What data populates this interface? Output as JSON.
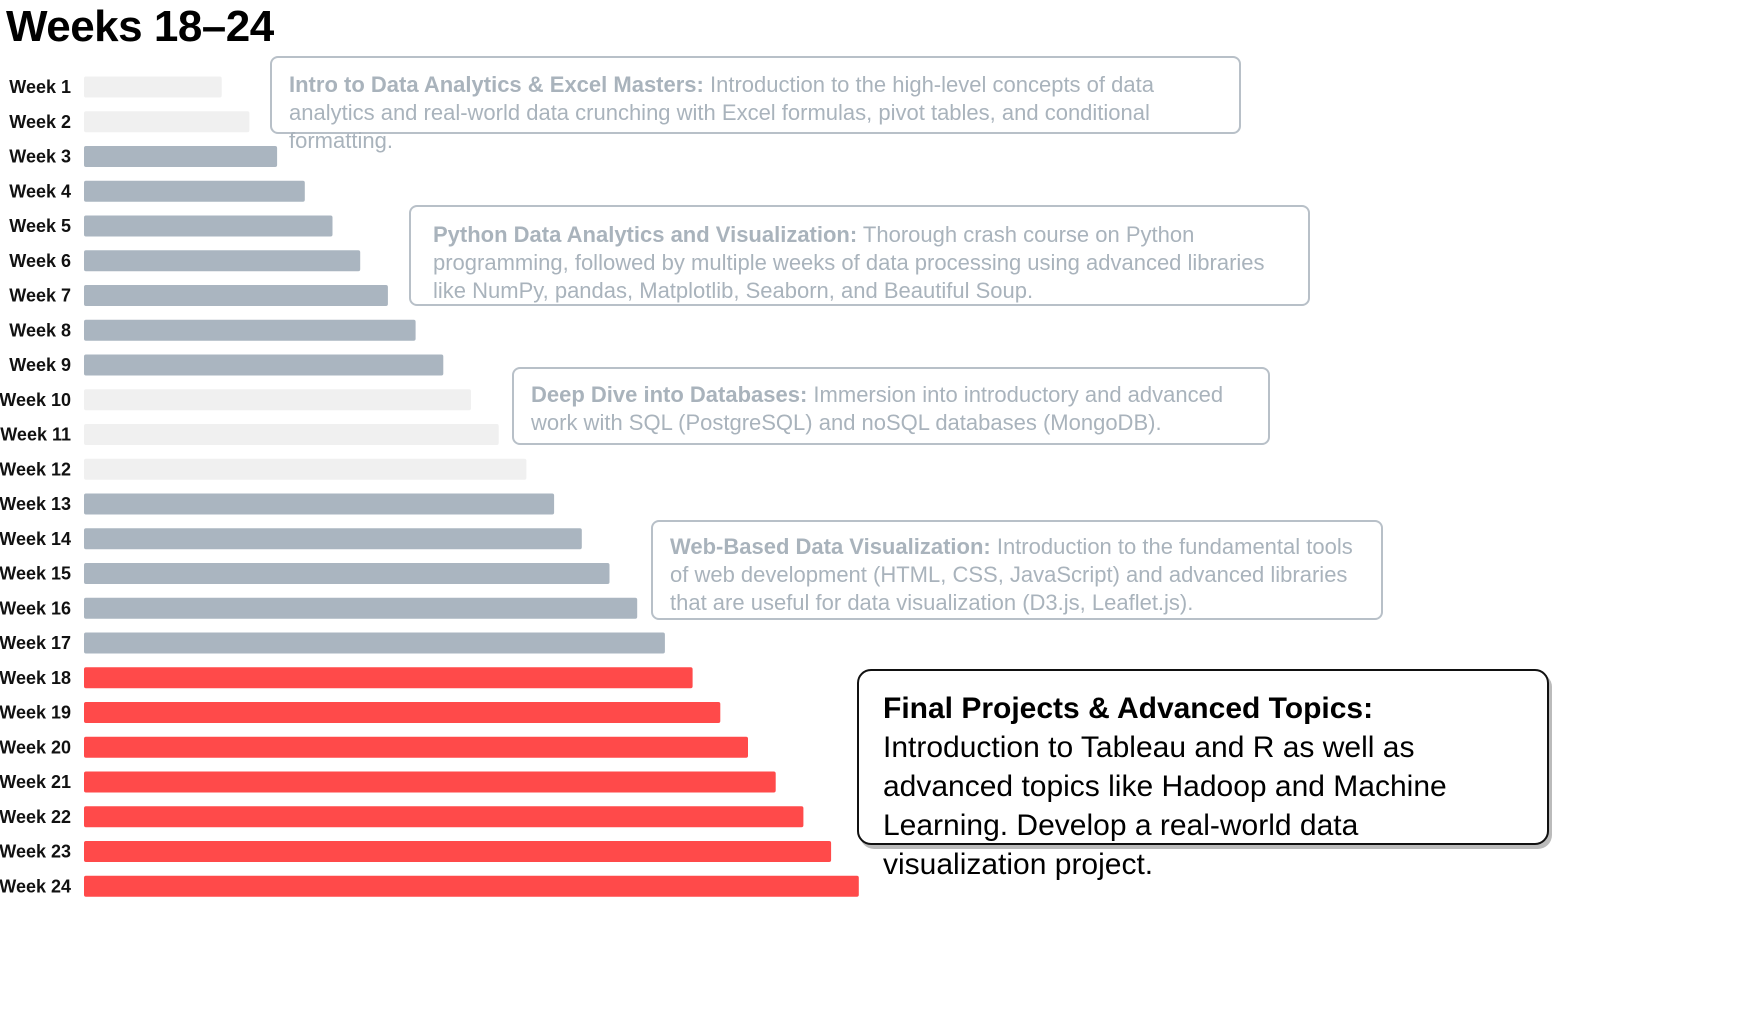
{
  "title": "Weeks 18–24",
  "colors": {
    "past": "#aab5c0",
    "faded": "#f0f0f0",
    "current": "#ff4a4a"
  },
  "chart_data": {
    "type": "bar",
    "orientation": "horizontal",
    "categories": [
      "Week 1",
      "Week 2",
      "Week 3",
      "Week 4",
      "Week 5",
      "Week 6",
      "Week 7",
      "Week 8",
      "Week 9",
      "Week 10",
      "Week 11",
      "Week 12",
      "Week 13",
      "Week 14",
      "Week 15",
      "Week 16",
      "Week 17",
      "Week 18",
      "Week 19",
      "Week 20",
      "Week 21",
      "Week 22",
      "Week 23",
      "Week 24"
    ],
    "values": [
      1,
      2,
      3,
      4,
      5,
      6,
      7,
      8,
      9,
      10,
      11,
      12,
      13,
      14,
      15,
      16,
      17,
      18,
      19,
      20,
      21,
      22,
      23,
      24
    ],
    "bar_status": [
      "faded",
      "faded",
      "past",
      "past",
      "past",
      "past",
      "past",
      "past",
      "past",
      "faded",
      "faded",
      "faded",
      "past",
      "past",
      "past",
      "past",
      "past",
      "current",
      "current",
      "current",
      "current",
      "current",
      "current",
      "current"
    ],
    "xlabel": "",
    "ylabel": "",
    "grid": false,
    "legend": "none"
  },
  "callouts": [
    {
      "title": "Intro to Data Analytics & Excel Masters:",
      "text": " Introduction to the high-level concepts of data analytics and real-world data crunching with Excel formulas, pivot tables, and conditional formatting.",
      "active": false
    },
    {
      "title": "Python Data Analytics and Visualization:",
      "text": " Thorough crash course on Python programming, followed by multiple weeks of data processing using advanced libraries like NumPy, pandas, Matplotlib, Seaborn, and Beautiful Soup.",
      "active": false
    },
    {
      "title": "Deep Dive into Databases:",
      "text": " Immersion into introductory and advanced work with SQL (PostgreSQL) and noSQL databases (MongoDB).",
      "active": false
    },
    {
      "title": "Web-Based Data Visualization:",
      "text": " Introduction to the fundamental tools of web development (HTML, CSS, JavaScript) and advanced libraries that are useful for data visualization (D3.js, Leaflet.js).",
      "active": false
    },
    {
      "title": "Final Projects & Advanced Topics:",
      "text": " Introduction to Tableau and R as well as advanced topics like Hadoop and Machine Learning. Develop a real-world data visualization project.",
      "active": true
    }
  ]
}
